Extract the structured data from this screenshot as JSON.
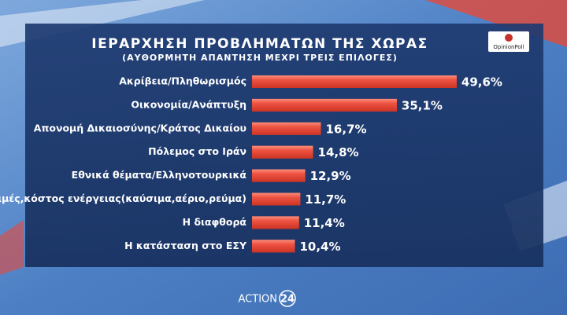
{
  "chart_data": {
    "type": "hbar",
    "title": "ΙΕΡΑΡΧΗΣΗ ΠΡΟΒΛΗΜΑΤΩΝ ΤΗΣ ΧΩΡΑΣ",
    "subtitle": "(ΑΥΘΟΡΜΗΤΗ ΑΠΑΝΤΗΣΗ ΜΕΧΡΙ ΤΡΕΙΣ ΕΠΙΛΟΓΕΣ)",
    "categories": [
      "Ακρίβεια/Πληθωρισμός",
      "Οικονομία/Ανάπτυξη",
      "Απονομή Δικαιοσύνης/Κράτος Δικαίου",
      "Πόλεμος στο Ιράν",
      "Εθνικά θέματα/Ελληνοτουρκικά",
      "Τιμές,κόστος ενέργειας(καύσιμα,αέριο,ρεύμα)",
      "Η διαφθορά",
      "Η κατάσταση στο ΕΣΥ"
    ],
    "values": [
      49.6,
      35.1,
      16.7,
      14.8,
      12.9,
      11.7,
      11.4,
      10.4
    ],
    "value_labels": [
      "49,6%",
      "35,1%",
      "16,7%",
      "14,8%",
      "12,9%",
      "11,7%",
      "11,4%",
      "10,4%"
    ],
    "color": "#e8473a",
    "source_logo": "OpinionPoll",
    "channel_logo": {
      "name": "ACTION",
      "number": "24"
    }
  }
}
